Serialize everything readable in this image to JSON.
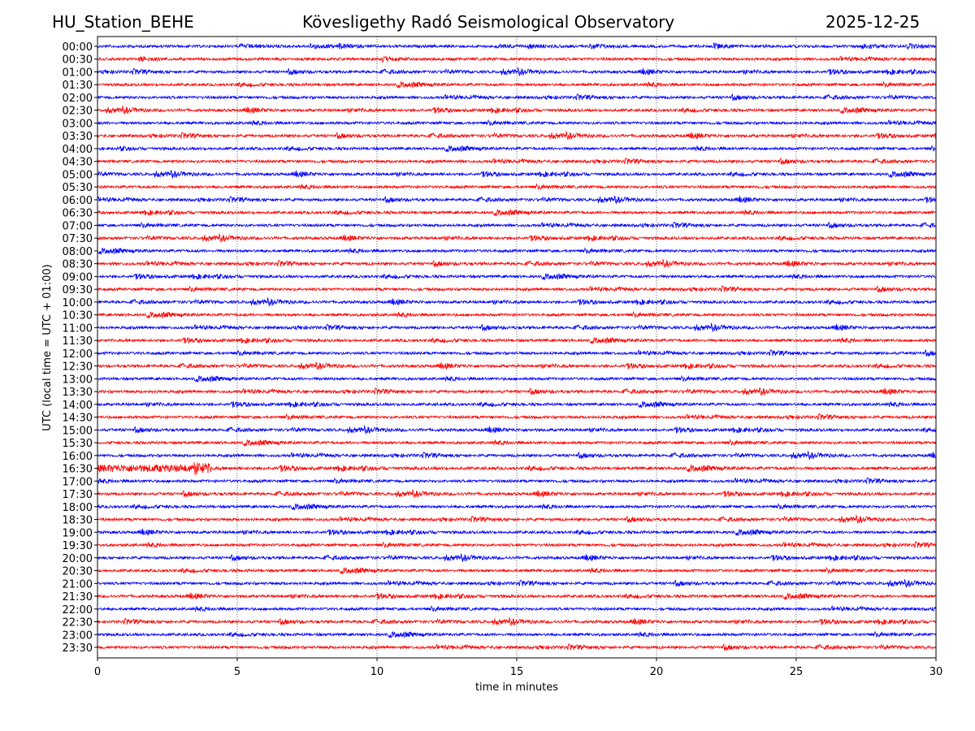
{
  "header": {
    "station": "HU_Station_BEHE",
    "observatory": "Kövesligethy Radó Seismological Observatory",
    "date": "2025-12-25"
  },
  "chart_data": {
    "type": "line",
    "title": "Kövesligethy Radó Seismological Observatory",
    "xlabel": "time in minutes",
    "ylabel": "UTC (local time = UTC + 01:00)",
    "xlim": [
      0,
      30
    ],
    "xticks": [
      0,
      5,
      10,
      15,
      20,
      25,
      30
    ],
    "grid": "vertical dotted at x ticks",
    "colors": [
      "#0000ff",
      "#ff0000"
    ],
    "rows": [
      "00:00",
      "00:30",
      "01:00",
      "01:30",
      "02:00",
      "02:30",
      "03:00",
      "03:30",
      "04:00",
      "04:30",
      "05:00",
      "05:30",
      "06:00",
      "06:30",
      "07:00",
      "07:30",
      "08:00",
      "08:30",
      "09:00",
      "09:30",
      "10:00",
      "10:30",
      "11:00",
      "11:30",
      "12:00",
      "12:30",
      "13:00",
      "13:30",
      "14:00",
      "14:30",
      "15:00",
      "15:30",
      "16:00",
      "16:30",
      "17:00",
      "17:30",
      "18:00",
      "18:30",
      "19:00",
      "19:30",
      "20:00",
      "20:30",
      "21:00",
      "21:30",
      "22:00",
      "22:30",
      "23:00",
      "23:30"
    ],
    "relative_amplitude": [
      1,
      1,
      1,
      1,
      1,
      1,
      1,
      1,
      1,
      1,
      1,
      1,
      1,
      1,
      1,
      1,
      1,
      1,
      1,
      1,
      1,
      1,
      1,
      1,
      1,
      1,
      1,
      1,
      1,
      1,
      1,
      1,
      1,
      1.8,
      1,
      1,
      1,
      1,
      1,
      1,
      1,
      1,
      1,
      1,
      1,
      1,
      1,
      1
    ]
  }
}
